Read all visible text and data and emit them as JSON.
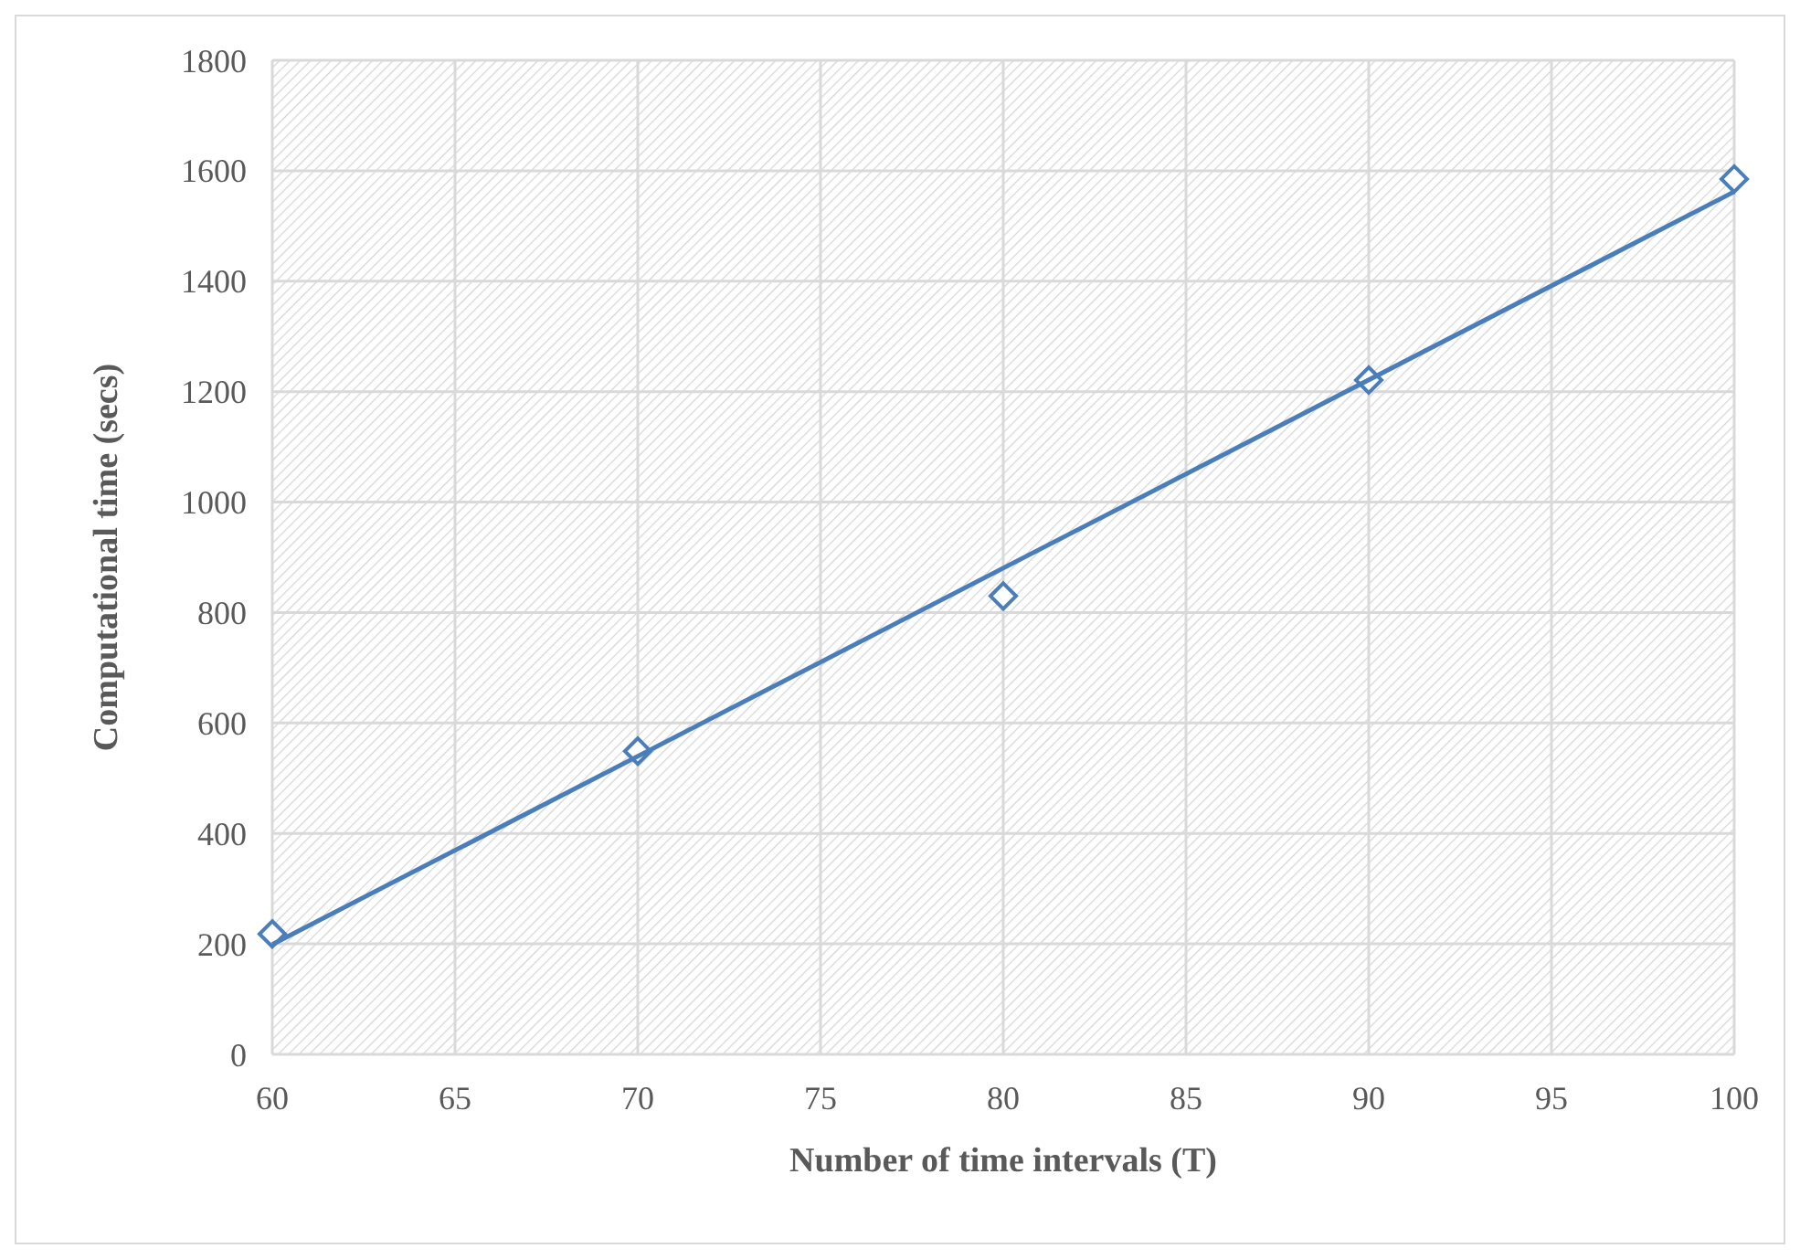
{
  "chart_data": {
    "type": "scatter",
    "xlabel": "Number of time intervals (T)",
    "ylabel": "Computational time (secs)",
    "x": [
      60,
      70,
      80,
      90,
      100
    ],
    "series": [
      {
        "color": "#4a7ebb",
        "values": [
          218,
          549,
          830,
          1221,
          1585
        ],
        "marker": "diamond"
      },
      {
        "type": "line",
        "color": "#4a7ebb",
        "x": [
          60,
          100
        ],
        "values": [
          199,
          1562
        ],
        "marker": "none",
        "line_style": "solid"
      }
    ],
    "xlim": [
      60,
      100
    ],
    "xticks": [
      60,
      65,
      70,
      75,
      80,
      85,
      90,
      95,
      100
    ],
    "ylim": [
      0,
      1800
    ],
    "yticks": [
      0,
      200,
      400,
      600,
      800,
      1000,
      1200,
      1400,
      1600,
      1800
    ],
    "grid": true
  }
}
